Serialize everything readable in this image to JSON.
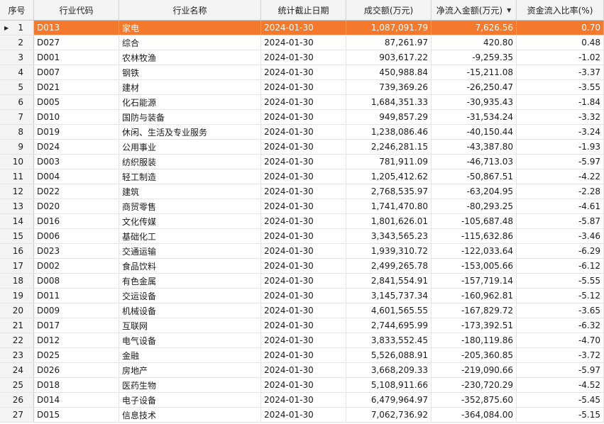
{
  "columns": [
    "序号",
    "行业代码",
    "行业名称",
    "统计截止日期",
    "成交额(万元)",
    "净流入金额(万元)",
    "资金流入比率(%)"
  ],
  "sort_indicator": "▼",
  "row_indicator": "▶",
  "colors": {
    "selected_row": "#f5792d",
    "header_bg": "#f3f3f3"
  },
  "rows": [
    [
      "1",
      "D013",
      "家电",
      "2024-01-30",
      "1,087,091.79",
      "7,626.56",
      "0.70"
    ],
    [
      "2",
      "D027",
      "综合",
      "2024-01-30",
      "87,261.97",
      "420.80",
      "0.48"
    ],
    [
      "3",
      "D001",
      "农林牧渔",
      "2024-01-30",
      "903,617.22",
      "-9,259.35",
      "-1.02"
    ],
    [
      "4",
      "D007",
      "钢铁",
      "2024-01-30",
      "450,988.84",
      "-15,211.08",
      "-3.37"
    ],
    [
      "5",
      "D021",
      "建材",
      "2024-01-30",
      "739,369.26",
      "-26,250.47",
      "-3.55"
    ],
    [
      "6",
      "D005",
      "化石能源",
      "2024-01-30",
      "1,684,351.33",
      "-30,935.43",
      "-1.84"
    ],
    [
      "7",
      "D010",
      "国防与装备",
      "2024-01-30",
      "949,857.29",
      "-31,534.24",
      "-3.32"
    ],
    [
      "8",
      "D019",
      "休闲、生活及专业服务",
      "2024-01-30",
      "1,238,086.46",
      "-40,150.44",
      "-3.24"
    ],
    [
      "9",
      "D024",
      "公用事业",
      "2024-01-30",
      "2,246,281.15",
      "-43,387.80",
      "-1.93"
    ],
    [
      "10",
      "D003",
      "纺织服装",
      "2024-01-30",
      "781,911.09",
      "-46,713.03",
      "-5.97"
    ],
    [
      "11",
      "D004",
      "轻工制造",
      "2024-01-30",
      "1,205,412.62",
      "-50,867.51",
      "-4.22"
    ],
    [
      "12",
      "D022",
      "建筑",
      "2024-01-30",
      "2,768,535.97",
      "-63,204.95",
      "-2.28"
    ],
    [
      "13",
      "D020",
      "商贸零售",
      "2024-01-30",
      "1,741,470.80",
      "-80,293.25",
      "-4.61"
    ],
    [
      "14",
      "D016",
      "文化传媒",
      "2024-01-30",
      "1,801,626.01",
      "-105,687.48",
      "-5.87"
    ],
    [
      "15",
      "D006",
      "基础化工",
      "2024-01-30",
      "3,343,565.23",
      "-115,632.86",
      "-3.46"
    ],
    [
      "16",
      "D023",
      "交通运输",
      "2024-01-30",
      "1,939,310.72",
      "-122,033.64",
      "-6.29"
    ],
    [
      "17",
      "D002",
      "食品饮料",
      "2024-01-30",
      "2,499,265.78",
      "-153,005.66",
      "-6.12"
    ],
    [
      "18",
      "D008",
      "有色金属",
      "2024-01-30",
      "2,841,554.91",
      "-157,719.14",
      "-5.55"
    ],
    [
      "19",
      "D011",
      "交运设备",
      "2024-01-30",
      "3,145,737.34",
      "-160,962.81",
      "-5.12"
    ],
    [
      "20",
      "D009",
      "机械设备",
      "2024-01-30",
      "4,601,565.55",
      "-167,829.72",
      "-3.65"
    ],
    [
      "21",
      "D017",
      "互联网",
      "2024-01-30",
      "2,744,695.99",
      "-173,392.51",
      "-6.32"
    ],
    [
      "22",
      "D012",
      "电气设备",
      "2024-01-30",
      "3,833,552.45",
      "-180,119.86",
      "-4.70"
    ],
    [
      "23",
      "D025",
      "金融",
      "2024-01-30",
      "5,526,088.91",
      "-205,360.85",
      "-3.72"
    ],
    [
      "24",
      "D026",
      "房地产",
      "2024-01-30",
      "3,668,209.33",
      "-219,090.66",
      "-5.97"
    ],
    [
      "25",
      "D018",
      "医药生物",
      "2024-01-30",
      "5,108,911.66",
      "-230,720.29",
      "-4.52"
    ],
    [
      "26",
      "D014",
      "电子设备",
      "2024-01-30",
      "6,479,964.97",
      "-352,875.60",
      "-5.45"
    ],
    [
      "27",
      "D015",
      "信息技术",
      "2024-01-30",
      "7,062,736.92",
      "-364,084.00",
      "-5.15"
    ]
  ]
}
